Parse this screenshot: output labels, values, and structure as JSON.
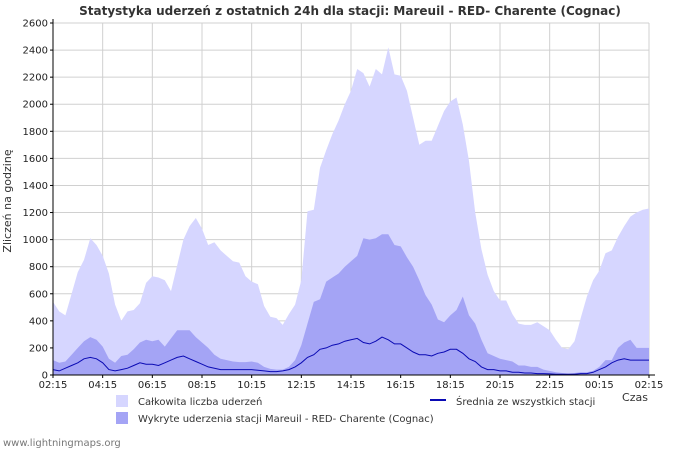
{
  "chart_data": {
    "type": "area",
    "title": "Statystyka uderzeń z ostatnich 24h dla stacji: Mareuil - RED- Charente (Cognac)",
    "ylabel": "Zliczeń na godzinę",
    "xlabel": "Czas",
    "ylim": [
      0,
      2600
    ],
    "y_ticks": [
      0,
      200,
      400,
      600,
      800,
      1000,
      1200,
      1400,
      1600,
      1800,
      2000,
      2200,
      2400,
      2600
    ],
    "x_range": [
      0,
      24
    ],
    "x_tick_labels": [
      "02:15",
      "04:15",
      "06:15",
      "08:15",
      "10:15",
      "12:15",
      "14:15",
      "16:15",
      "18:15",
      "20:15",
      "22:15",
      "00:15",
      "02:15"
    ],
    "x_tick_hours": [
      0,
      2,
      4,
      6,
      8,
      10,
      12,
      14,
      16,
      18,
      20,
      22,
      24
    ],
    "grid": true,
    "series": [
      {
        "name": "Całkowita liczba uderzeń",
        "kind": "area",
        "color": "#d6d6ff",
        "x": [
          0,
          0.25,
          0.5,
          0.75,
          1,
          1.25,
          1.5,
          1.75,
          2,
          2.25,
          2.5,
          2.75,
          3,
          3.25,
          3.5,
          3.75,
          4,
          4.25,
          4.5,
          4.75,
          5,
          5.25,
          5.5,
          5.75,
          6,
          6.25,
          6.5,
          6.75,
          7,
          7.25,
          7.5,
          7.75,
          8,
          8.25,
          8.5,
          8.75,
          9,
          9.25,
          9.5,
          9.75,
          10,
          10.25,
          10.5,
          10.75,
          11,
          11.25,
          11.5,
          11.75,
          12,
          12.25,
          12.5,
          12.75,
          13,
          13.25,
          13.5,
          13.75,
          14,
          14.25,
          14.5,
          14.75,
          15,
          15.25,
          15.5,
          15.75,
          16,
          16.25,
          16.5,
          16.75,
          17,
          17.25,
          17.5,
          17.75,
          18,
          18.25,
          18.5,
          18.75,
          19,
          19.25,
          19.5,
          19.75,
          20,
          20.25,
          20.5,
          20.75,
          21,
          21.25,
          21.5,
          21.75,
          22,
          22.25,
          22.5,
          22.75,
          23,
          23.25,
          23.5,
          23.75,
          24
        ],
        "values": [
          540,
          470,
          440,
          600,
          760,
          850,
          1010,
          960,
          880,
          750,
          520,
          400,
          470,
          480,
          530,
          680,
          730,
          720,
          700,
          620,
          810,
          1000,
          1100,
          1160,
          1080,
          960,
          980,
          920,
          880,
          840,
          830,
          730,
          690,
          670,
          510,
          430,
          420,
          370,
          450,
          520,
          700,
          1210,
          1220,
          1530,
          1660,
          1780,
          1880,
          2000,
          2100,
          2260,
          2230,
          2130,
          2260,
          2220,
          2420,
          2220,
          2210,
          2100,
          1900,
          1700,
          1730,
          1730,
          1840,
          1950,
          2020,
          2050,
          1850,
          1580,
          1200,
          930,
          740,
          620,
          550,
          550,
          450,
          380,
          370,
          370,
          390,
          360,
          330,
          260,
          200,
          190,
          250,
          420,
          580,
          700,
          770,
          900,
          920,
          1020,
          1100,
          1170,
          1200,
          1220,
          1230
        ]
      },
      {
        "name": "Wykryte uderzenia stacji Mareuil - RED- Charente (Cognac)",
        "kind": "area",
        "color": "#a4a4f5",
        "x": [
          0,
          0.25,
          0.5,
          0.75,
          1,
          1.25,
          1.5,
          1.75,
          2,
          2.25,
          2.5,
          2.75,
          3,
          3.25,
          3.5,
          3.75,
          4,
          4.25,
          4.5,
          4.75,
          5,
          5.25,
          5.5,
          5.75,
          6,
          6.25,
          6.5,
          6.75,
          7,
          7.25,
          7.5,
          7.75,
          8,
          8.25,
          8.5,
          8.75,
          9,
          9.25,
          9.5,
          9.75,
          10,
          10.25,
          10.5,
          10.75,
          11,
          11.25,
          11.5,
          11.75,
          12,
          12.25,
          12.5,
          12.75,
          13,
          13.25,
          13.5,
          13.75,
          14,
          14.25,
          14.5,
          14.75,
          15,
          15.25,
          15.5,
          15.75,
          16,
          16.25,
          16.5,
          16.75,
          17,
          17.25,
          17.5,
          17.75,
          18,
          18.25,
          18.5,
          18.75,
          19,
          19.25,
          19.5,
          19.75,
          20,
          20.25,
          20.5,
          20.75,
          21,
          21.25,
          21.5,
          21.75,
          22,
          22.25,
          22.5,
          22.75,
          23,
          23.25,
          23.5,
          23.75,
          24
        ],
        "values": [
          110,
          90,
          100,
          150,
          200,
          250,
          280,
          260,
          210,
          120,
          90,
          140,
          150,
          190,
          240,
          260,
          250,
          260,
          210,
          270,
          330,
          330,
          330,
          280,
          240,
          200,
          150,
          120,
          110,
          100,
          95,
          95,
          100,
          90,
          60,
          45,
          40,
          40,
          60,
          110,
          220,
          380,
          540,
          560,
          690,
          720,
          750,
          800,
          840,
          880,
          1010,
          1000,
          1010,
          1040,
          1040,
          960,
          950,
          870,
          800,
          700,
          590,
          520,
          410,
          390,
          440,
          480,
          580,
          440,
          380,
          260,
          160,
          140,
          120,
          110,
          100,
          70,
          70,
          60,
          60,
          40,
          30,
          20,
          15,
          10,
          15,
          20,
          20,
          30,
          60,
          110,
          110,
          200,
          240,
          260,
          200,
          200,
          200
        ]
      },
      {
        "name": "Średnia ze wszystkich stacji",
        "kind": "line",
        "color": "#0a0ab4",
        "x": [
          0,
          0.25,
          0.5,
          0.75,
          1,
          1.25,
          1.5,
          1.75,
          2,
          2.25,
          2.5,
          2.75,
          3,
          3.25,
          3.5,
          3.75,
          4,
          4.25,
          4.5,
          4.75,
          5,
          5.25,
          5.5,
          5.75,
          6,
          6.25,
          6.5,
          6.75,
          7,
          7.25,
          7.5,
          7.75,
          8,
          8.25,
          8.5,
          8.75,
          9,
          9.25,
          9.5,
          9.75,
          10,
          10.25,
          10.5,
          10.75,
          11,
          11.25,
          11.5,
          11.75,
          12,
          12.25,
          12.5,
          12.75,
          13,
          13.25,
          13.5,
          13.75,
          14,
          14.25,
          14.5,
          14.75,
          15,
          15.25,
          15.5,
          15.75,
          16,
          16.25,
          16.5,
          16.75,
          17,
          17.25,
          17.5,
          17.75,
          18,
          18.25,
          18.5,
          18.75,
          19,
          19.25,
          19.5,
          19.75,
          20,
          20.25,
          20.5,
          20.75,
          21,
          21.25,
          21.5,
          21.75,
          22,
          22.25,
          22.5,
          22.75,
          23,
          23.25,
          23.5,
          23.75,
          24
        ],
        "values": [
          40,
          30,
          50,
          70,
          90,
          120,
          130,
          120,
          90,
          40,
          30,
          40,
          50,
          70,
          90,
          80,
          80,
          70,
          90,
          110,
          130,
          140,
          120,
          100,
          80,
          60,
          50,
          40,
          40,
          40,
          40,
          40,
          40,
          35,
          30,
          25,
          25,
          30,
          40,
          60,
          90,
          130,
          150,
          190,
          200,
          220,
          230,
          250,
          260,
          270,
          240,
          230,
          250,
          280,
          260,
          230,
          230,
          200,
          170,
          150,
          150,
          140,
          160,
          170,
          190,
          190,
          160,
          120,
          100,
          60,
          40,
          40,
          30,
          30,
          20,
          20,
          15,
          15,
          10,
          10,
          8,
          5,
          5,
          5,
          5,
          10,
          10,
          20,
          40,
          60,
          90,
          110,
          120,
          110,
          110,
          110,
          110
        ]
      }
    ],
    "legend": "bottom"
  },
  "footer": {
    "site": "www.lightningmaps.org"
  }
}
